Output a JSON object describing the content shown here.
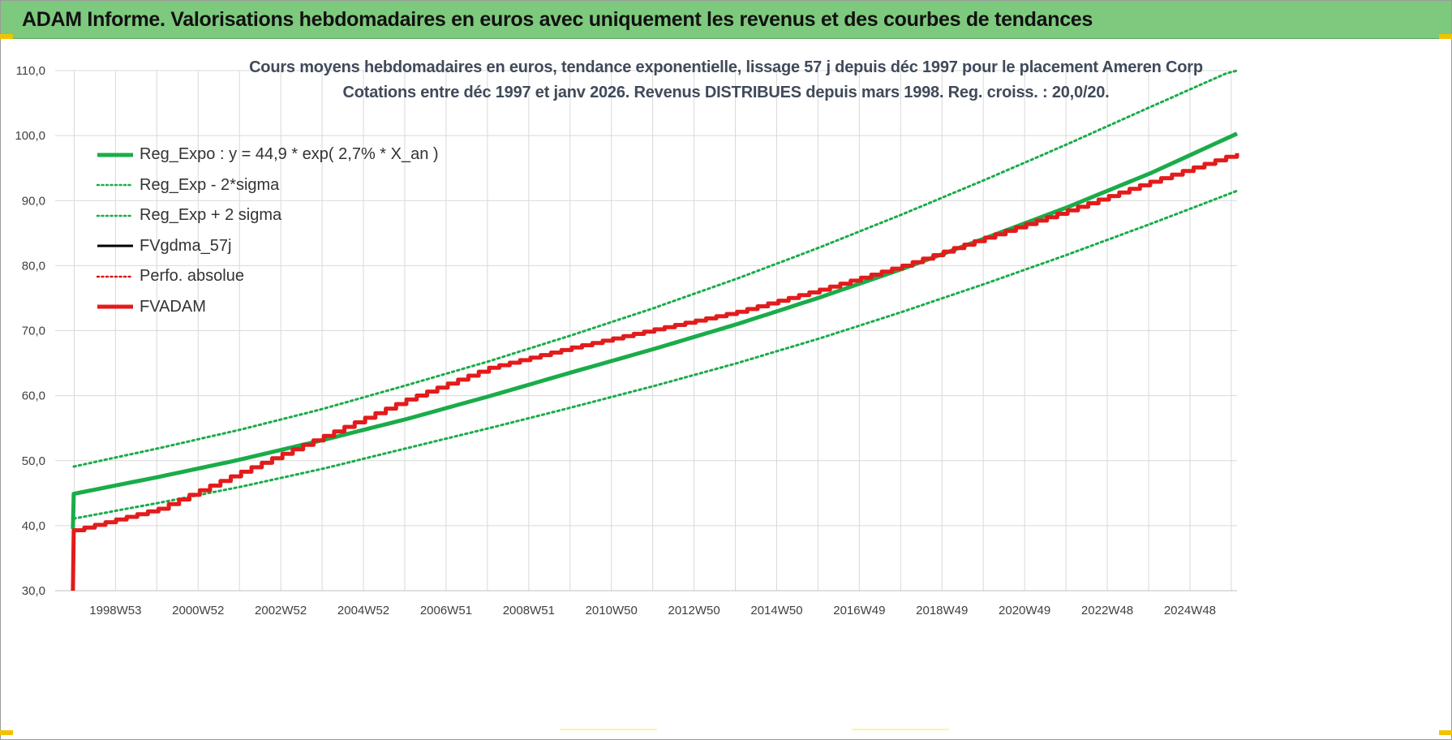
{
  "header": {
    "title": "ADAM Informe. Valorisations hebdomadaires en euros avec uniquement les revenus et des courbes de tendances"
  },
  "colors": {
    "banner": "#7dc97d",
    "reg_expo": "#1aac4a",
    "reg_band": "#1aac4a",
    "fvgdma": "#000000",
    "perfo": "#d61a1a",
    "fvadam": "#e31b1b",
    "grid": "#d9d9d9"
  },
  "chart_data": {
    "type": "line",
    "title": "Cours moyens hebdomadaires en euros, tendance exponentielle, lissage 57 j depuis déc 1997 pour le placement Ameren Corp",
    "subtitle": "Cotations entre déc 1997 et janv 2026. Revenus DISTRIBUES depuis mars 1998. Reg. croiss. : 20,0/20.",
    "xlabel": "",
    "ylabel": "",
    "ylim": [
      30,
      110
    ],
    "yticks": [
      "110,0",
      "100,0",
      "90,0",
      "80,0",
      "70,0",
      "60,0",
      "50,0",
      "40,0",
      "30,0"
    ],
    "xlim": [
      1997.5,
      2026.1
    ],
    "xticks": [
      {
        "x": 1998.96,
        "label": "1998W53"
      },
      {
        "x": 2000.96,
        "label": "2000W52"
      },
      {
        "x": 2002.96,
        "label": "2002W52"
      },
      {
        "x": 2004.96,
        "label": "2004W52"
      },
      {
        "x": 2006.96,
        "label": "2006W51"
      },
      {
        "x": 2008.96,
        "label": "2008W51"
      },
      {
        "x": 2010.96,
        "label": "2010W50"
      },
      {
        "x": 2012.96,
        "label": "2012W50"
      },
      {
        "x": 2014.96,
        "label": "2014W50"
      },
      {
        "x": 2016.96,
        "label": "2016W49"
      },
      {
        "x": 2018.96,
        "label": "2018W49"
      },
      {
        "x": 2020.96,
        "label": "2020W49"
      },
      {
        "x": 2022.96,
        "label": "2022W48"
      },
      {
        "x": 2024.96,
        "label": "2024W48"
      }
    ],
    "grid": true,
    "legend_position": "top-left",
    "series": [
      {
        "name": "Reg_Expo : y = 44,9 * exp( 2,7% *  X_an )",
        "style": "solid-thick",
        "color": "#1aac4a",
        "x": [
          1997.93,
          1997.95,
          2000,
          2002,
          2004,
          2006,
          2008,
          2010,
          2012,
          2014,
          2016,
          2018,
          2020,
          2022,
          2024,
          2026.1
        ],
        "values": [
          39.5,
          44.9,
          47.5,
          50.2,
          53.2,
          56.4,
          59.9,
          63.6,
          67.2,
          71.0,
          75.1,
          79.5,
          84.2,
          89.0,
          94.2,
          100.3
        ]
      },
      {
        "name": "Reg_Exp - 2*sigma",
        "style": "dotted",
        "color": "#1aac4a",
        "x": [
          1997.95,
          2000,
          2002,
          2004,
          2006,
          2008,
          2010,
          2012,
          2014,
          2016,
          2018,
          2020,
          2022,
          2024,
          2026.1
        ],
        "values": [
          41.1,
          43.5,
          46.0,
          48.8,
          51.9,
          55.0,
          58.2,
          61.5,
          65.0,
          68.8,
          72.9,
          77.2,
          81.7,
          86.4,
          91.5
        ]
      },
      {
        "name": "Reg_Exp + 2 sigma",
        "style": "dotted",
        "color": "#1aac4a",
        "x": [
          1997.95,
          2000,
          2002,
          2004,
          2006,
          2008,
          2010,
          2012,
          2014,
          2016,
          2018,
          2020,
          2022,
          2024,
          2026.1
        ],
        "values": [
          49.1,
          51.9,
          54.8,
          58.0,
          61.6,
          65.3,
          69.3,
          73.5,
          78.0,
          82.8,
          87.9,
          93.2,
          98.7,
          104.4,
          110.3
        ]
      },
      {
        "name": "FVgdma_57j",
        "style": "solid",
        "color": "#000000",
        "x": [],
        "values": []
      },
      {
        "name": "Perfo. absolue",
        "style": "dotted",
        "color": "#d61a1a",
        "x": [],
        "values": []
      },
      {
        "name": "FVADAM",
        "style": "solid-thick",
        "color": "#e31b1b",
        "x": [
          1997.93,
          1997.95,
          2000,
          2002,
          2004,
          2006,
          2008,
          2010,
          2012,
          2014,
          2016,
          2018,
          2020,
          2022,
          2024,
          2026.1
        ],
        "values": [
          30.0,
          39.3,
          42.6,
          48.3,
          53.8,
          59.4,
          64.3,
          67.4,
          70.2,
          72.9,
          76.3,
          80.0,
          84.3,
          88.5,
          92.9,
          97.3
        ]
      }
    ]
  }
}
